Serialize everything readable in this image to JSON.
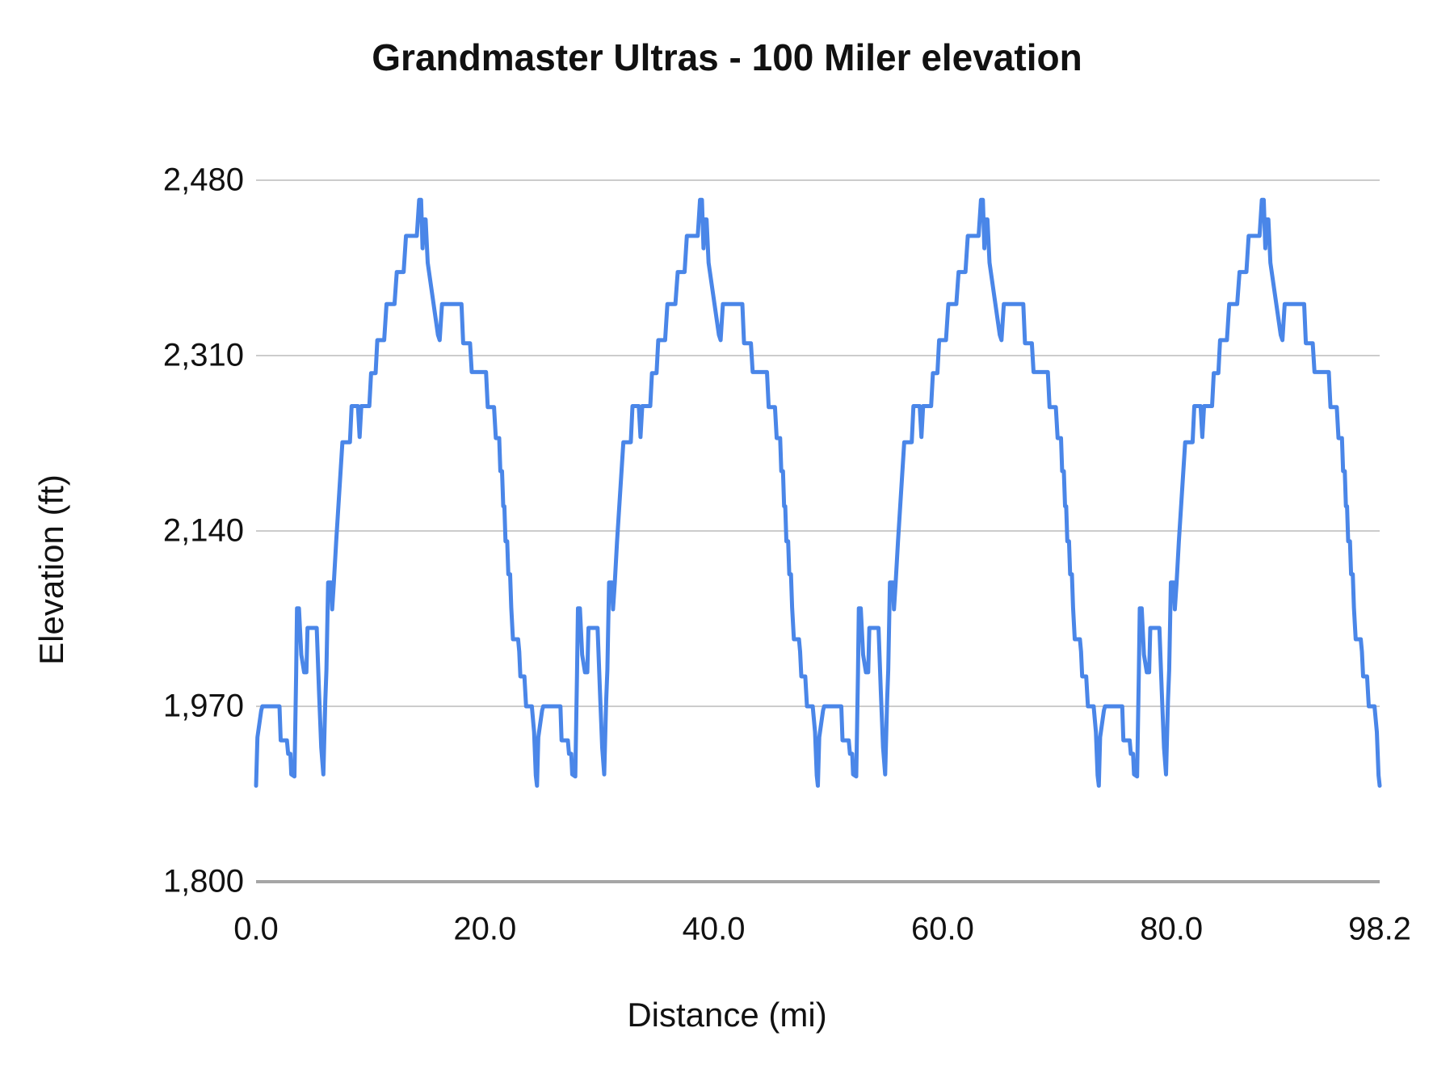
{
  "title": "Grandmaster Ultras - 100 Miler elevation",
  "chart_data": {
    "type": "line",
    "title": "Grandmaster Ultras - 100 Miler elevation",
    "xlabel": "Distance (mi)",
    "ylabel": "Elevation (ft)",
    "xlim": [
      0,
      98.2
    ],
    "ylim": [
      1800,
      2480
    ],
    "grid": "horizontal",
    "legend": "none",
    "background": "#ffffff",
    "x_ticks": [
      {
        "label": "0.0",
        "value": 0
      },
      {
        "label": "20.0",
        "value": 20
      },
      {
        "label": "40.0",
        "value": 40
      },
      {
        "label": "60.0",
        "value": 60
      },
      {
        "label": "80.0",
        "value": 80
      },
      {
        "label": "98.2",
        "value": 98.2
      }
    ],
    "y_ticks": [
      {
        "label": "1,800",
        "value": 1800
      },
      {
        "label": "1,970",
        "value": 1970
      },
      {
        "label": "2,140",
        "value": 2140
      },
      {
        "label": "2,310",
        "value": 2310
      },
      {
        "label": "2,480",
        "value": 2480
      }
    ],
    "series": [
      {
        "name": "elevation",
        "color": "#4a86e8",
        "stroke_width": 5,
        "laps": 4,
        "lap_length_mi": 24.55,
        "total_distance_mi": 98.2,
        "summit_ft": 2461,
        "low_ft": 1893,
        "lap_profile": [
          [
            0.0,
            1893
          ],
          [
            0.12,
            1940
          ],
          [
            0.45,
            1966
          ],
          [
            0.55,
            1970
          ],
          [
            2.05,
            1970
          ],
          [
            2.15,
            1937
          ],
          [
            2.7,
            1937
          ],
          [
            2.8,
            1924
          ],
          [
            3.0,
            1924
          ],
          [
            3.08,
            1904
          ],
          [
            3.35,
            1902
          ],
          [
            3.5,
            2000
          ],
          [
            3.58,
            2065
          ],
          [
            3.75,
            2065
          ],
          [
            3.95,
            2020
          ],
          [
            4.2,
            2003
          ],
          [
            4.4,
            2003
          ],
          [
            4.5,
            2046
          ],
          [
            5.3,
            2046
          ],
          [
            5.5,
            1985
          ],
          [
            5.7,
            1930
          ],
          [
            5.88,
            1904
          ],
          [
            6.05,
            1975
          ],
          [
            6.15,
            2005
          ],
          [
            6.3,
            2090
          ],
          [
            6.55,
            2090
          ],
          [
            6.65,
            2064
          ],
          [
            6.8,
            2090
          ],
          [
            7.0,
            2130
          ],
          [
            7.55,
            2226
          ],
          [
            8.2,
            2226
          ],
          [
            8.35,
            2261
          ],
          [
            8.9,
            2261
          ],
          [
            9.05,
            2231
          ],
          [
            9.2,
            2261
          ],
          [
            9.9,
            2261
          ],
          [
            10.05,
            2293
          ],
          [
            10.45,
            2293
          ],
          [
            10.6,
            2325
          ],
          [
            11.2,
            2325
          ],
          [
            11.4,
            2360
          ],
          [
            12.1,
            2360
          ],
          [
            12.3,
            2391
          ],
          [
            12.9,
            2391
          ],
          [
            13.1,
            2426
          ],
          [
            14.05,
            2426
          ],
          [
            14.25,
            2461
          ],
          [
            14.42,
            2461
          ],
          [
            14.55,
            2414
          ],
          [
            14.68,
            2442
          ],
          [
            14.82,
            2442
          ],
          [
            15.0,
            2400
          ],
          [
            15.9,
            2330
          ],
          [
            16.05,
            2325
          ],
          [
            16.25,
            2360
          ],
          [
            17.95,
            2360
          ],
          [
            18.1,
            2322
          ],
          [
            18.7,
            2322
          ],
          [
            18.85,
            2294
          ],
          [
            20.1,
            2294
          ],
          [
            20.25,
            2260
          ],
          [
            20.8,
            2260
          ],
          [
            20.95,
            2230
          ],
          [
            21.25,
            2230
          ],
          [
            21.35,
            2198
          ],
          [
            21.5,
            2198
          ],
          [
            21.6,
            2164
          ],
          [
            21.7,
            2164
          ],
          [
            21.8,
            2130
          ],
          [
            21.95,
            2130
          ],
          [
            22.05,
            2098
          ],
          [
            22.2,
            2098
          ],
          [
            22.3,
            2066
          ],
          [
            22.45,
            2035
          ],
          [
            22.9,
            2035
          ],
          [
            23.0,
            2023
          ],
          [
            23.1,
            1999
          ],
          [
            23.45,
            1999
          ],
          [
            23.6,
            1970
          ],
          [
            24.1,
            1970
          ],
          [
            24.3,
            1945
          ],
          [
            24.45,
            1903
          ],
          [
            24.55,
            1893
          ]
        ]
      }
    ],
    "colors": {
      "line": "#4a86e8",
      "gridline": "#cccccc",
      "axis_line": "#a6a6a6",
      "text": "#111111",
      "background": "#ffffff"
    }
  }
}
